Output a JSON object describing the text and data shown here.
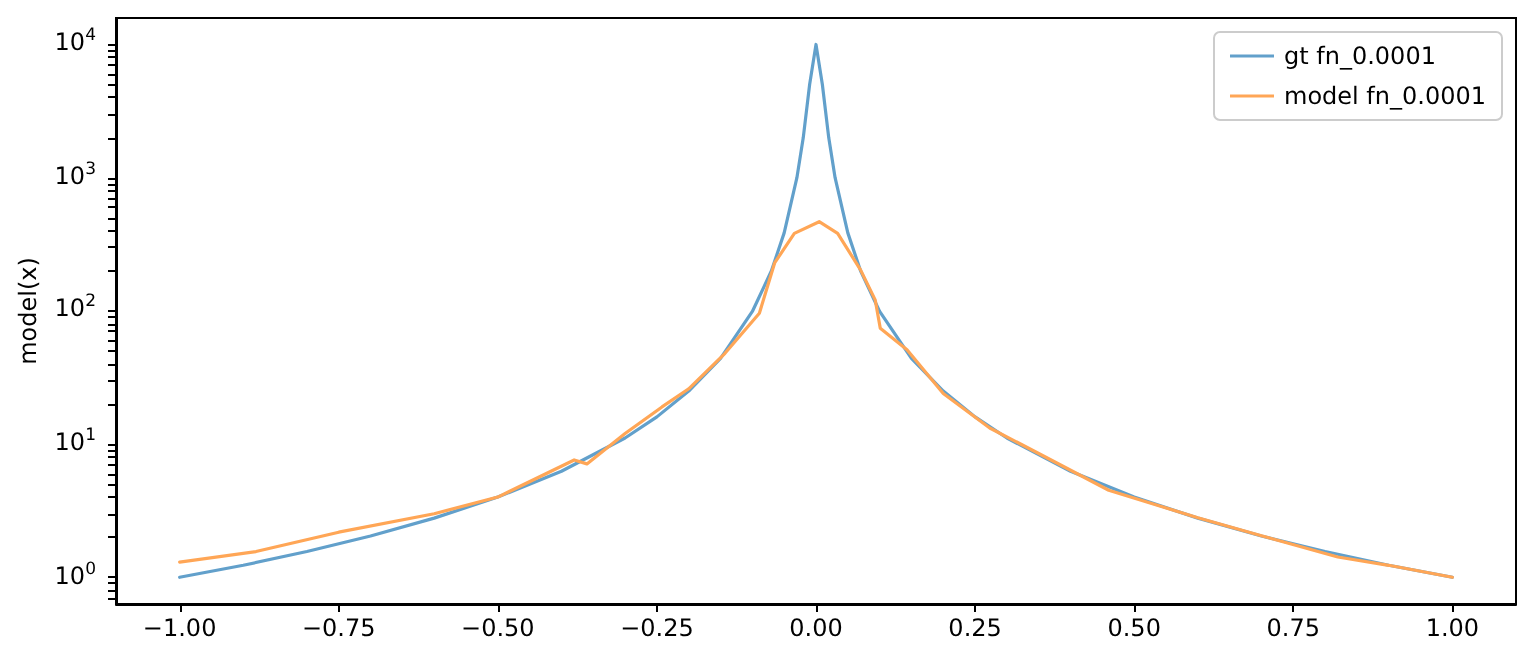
{
  "chart_data": {
    "type": "line",
    "ylabel": "model(x)",
    "log": "y",
    "grid": false,
    "legend": "top right",
    "marker": "none",
    "line_style": "solid",
    "xlim": [
      -1.1,
      1.1
    ],
    "xticks": [
      {
        "value": -1,
        "label": "−1.00"
      },
      {
        "value": -0.75,
        "label": "−0.75"
      },
      {
        "value": -0.5,
        "label": "−0.50"
      },
      {
        "value": -0.25,
        "label": "−0.25"
      },
      {
        "value": 0,
        "label": "0.00"
      },
      {
        "value": 0.25,
        "label": "0.25"
      },
      {
        "value": 0.5,
        "label": "0.50"
      },
      {
        "value": 0.75,
        "label": "0.75"
      },
      {
        "value": 1,
        "label": "1.00"
      }
    ],
    "ylim": [
      0.63,
      15800
    ],
    "yticks": [
      {
        "value": 0.7,
        "label": null
      },
      {
        "value": 0.8,
        "label": null
      },
      {
        "value": 0.9,
        "label": null
      },
      {
        "value": 1,
        "label": "10$^{0}$"
      },
      {
        "value": 2,
        "label": null
      },
      {
        "value": 3,
        "label": null
      },
      {
        "value": 4,
        "label": null
      },
      {
        "value": 5,
        "label": null
      },
      {
        "value": 6,
        "label": null
      },
      {
        "value": 7,
        "label": null
      },
      {
        "value": 8,
        "label": null
      },
      {
        "value": 9,
        "label": null
      },
      {
        "value": 10,
        "label": "10$^{1}$"
      },
      {
        "value": 20,
        "label": null
      },
      {
        "value": 30,
        "label": null
      },
      {
        "value": 40,
        "label": null
      },
      {
        "value": 50,
        "label": null
      },
      {
        "value": 60,
        "label": null
      },
      {
        "value": 70,
        "label": null
      },
      {
        "value": 80,
        "label": null
      },
      {
        "value": 90,
        "label": null
      },
      {
        "value": 100,
        "label": "10$^{2}$"
      },
      {
        "value": 200,
        "label": null
      },
      {
        "value": 300,
        "label": null
      },
      {
        "value": 400,
        "label": null
      },
      {
        "value": 500,
        "label": null
      },
      {
        "value": 600,
        "label": null
      },
      {
        "value": 700,
        "label": null
      },
      {
        "value": 800,
        "label": null
      },
      {
        "value": 900,
        "label": null
      },
      {
        "value": 1000,
        "label": "10$^{3}$"
      },
      {
        "value": 2000,
        "label": null
      },
      {
        "value": 3000,
        "label": null
      },
      {
        "value": 4000,
        "label": null
      },
      {
        "value": 5000,
        "label": null
      },
      {
        "value": 6000,
        "label": null
      },
      {
        "value": 7000,
        "label": null
      },
      {
        "value": 8000,
        "label": null
      },
      {
        "value": 9000,
        "label": null
      },
      {
        "value": 10000,
        "label": "10$^{4}$"
      }
    ],
    "series": [
      {
        "name": "gt fn_0.0001",
        "color": "#62a0cb",
        "x": [
          -1,
          -0.9,
          -0.8,
          -0.7,
          -0.6,
          -0.5,
          -0.4,
          -0.3,
          -0.25,
          -0.2,
          -0.15,
          -0.1,
          -0.07,
          -0.05,
          -0.03,
          -0.02,
          -0.01,
          0,
          0.01,
          0.02,
          0.03,
          0.05,
          0.07,
          0.1,
          0.15,
          0.2,
          0.25,
          0.3,
          0.4,
          0.5,
          0.6,
          0.7,
          0.8,
          0.9,
          1
        ],
        "values": [
          1.0,
          1.23,
          1.56,
          2.04,
          2.78,
          4.0,
          6.25,
          11.1,
          16,
          25,
          44,
          99,
          200,
          385,
          1000,
          2000,
          5000,
          10000,
          5000,
          2000,
          1000,
          385,
          200,
          99,
          44,
          25,
          16,
          11.1,
          6.25,
          4.0,
          2.78,
          2.04,
          1.56,
          1.23,
          1.0
        ]
      },
      {
        "name": "model fn_0.0001",
        "color": "#ffa656",
        "x": [
          -1,
          -0.88,
          -0.75,
          -0.6,
          -0.5,
          -0.38,
          -0.36,
          -0.3,
          -0.242,
          -0.2,
          -0.143,
          -0.089,
          -0.065,
          -0.034,
          0.005,
          0.034,
          0.07,
          0.093,
          0.101,
          0.143,
          0.2,
          0.273,
          0.35,
          0.46,
          0.6,
          0.7,
          0.82,
          0.9,
          1
        ],
        "values": [
          1.3,
          1.56,
          2.18,
          3.0,
          4.0,
          7.6,
          7.1,
          12,
          19,
          26,
          48,
          96,
          229,
          382,
          467,
          382,
          203,
          121,
          74,
          51,
          24,
          13.2,
          8.5,
          4.5,
          2.8,
          2.05,
          1.42,
          1.23,
          1.0
        ]
      }
    ]
  }
}
